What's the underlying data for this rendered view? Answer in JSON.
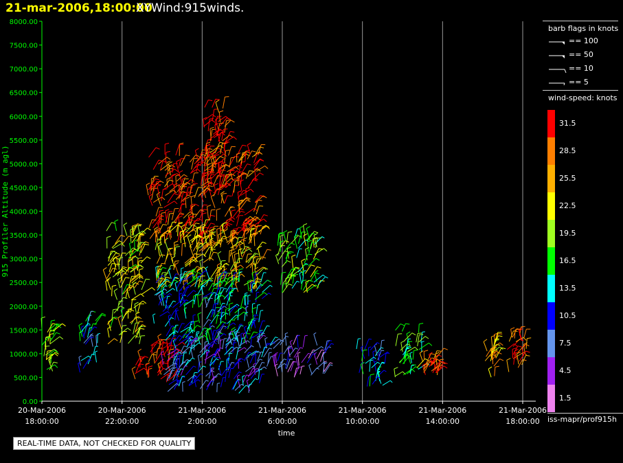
{
  "header": {
    "date_time": "21-mar-2006,18:00:00",
    "product": "XYWind:915winds."
  },
  "chart_data": {
    "type": "scatter",
    "subtype": "wind-barb time-height",
    "title": "",
    "xlabel": "time",
    "ylabel": "915 Profiler Altitude (m agl)",
    "ylim": [
      0,
      8000
    ],
    "yticks": [
      "0.00",
      "500.00",
      "1000.00",
      "1500.00",
      "2000.00",
      "2500.00",
      "3000.00",
      "3500.00",
      "4000.00",
      "4500.00",
      "5000.00",
      "5500.00",
      "6000.00",
      "6500.00",
      "7000.00",
      "7500.00",
      "8000.00"
    ],
    "ytick_values": [
      0,
      500,
      1000,
      1500,
      2000,
      2500,
      3000,
      3500,
      4000,
      4500,
      5000,
      5500,
      6000,
      6500,
      7000,
      7500,
      8000
    ],
    "xlim_hours_since_first_tick": [
      0,
      24.5
    ],
    "xticks": [
      {
        "hour": 0,
        "line1": "20-Mar-2006",
        "line2": "18:00:00"
      },
      {
        "hour": 4,
        "line1": "20-Mar-2006",
        "line2": "22:00:00"
      },
      {
        "hour": 8,
        "line1": "21-Mar-2006",
        "line2": "2:00:00"
      },
      {
        "hour": 12,
        "line1": "21-Mar-2006",
        "line2": "6:00:00"
      },
      {
        "hour": 16,
        "line1": "21-Mar-2006",
        "line2": "10:00:00"
      },
      {
        "hour": 20,
        "line1": "21-Mar-2006",
        "line2": "14:00:00"
      },
      {
        "hour": 24,
        "line1": "21-Mar-2006",
        "line2": "18:00:00"
      }
    ],
    "vertical_grid": true,
    "axis_color": "#00ff00",
    "clusters": [
      {
        "h0": 0.0,
        "h1": 0.6,
        "z0": 500,
        "z1": 1600,
        "speed": 20
      },
      {
        "h0": 1.9,
        "h1": 2.8,
        "z0": 600,
        "z1": 1700,
        "speed": 12
      },
      {
        "h0": 3.2,
        "h1": 5.0,
        "z0": 1200,
        "z1": 3600,
        "speed": 22
      },
      {
        "h0": 4.6,
        "h1": 6.6,
        "z0": 400,
        "z1": 1200,
        "speed": 31
      },
      {
        "h0": 5.3,
        "h1": 10.8,
        "z0": 3300,
        "z1": 5200,
        "speed": 30
      },
      {
        "h0": 8.0,
        "h1": 9.3,
        "z0": 4500,
        "z1": 6200,
        "speed": 31
      },
      {
        "h0": 5.6,
        "h1": 11.0,
        "z0": 2300,
        "z1": 3600,
        "speed": 24
      },
      {
        "h0": 5.6,
        "h1": 11.0,
        "z0": 1200,
        "z1": 2600,
        "speed": 13
      },
      {
        "h0": 6.0,
        "h1": 11.5,
        "z0": 150,
        "z1": 1300,
        "speed": 9
      },
      {
        "h0": 11.5,
        "h1": 14.2,
        "z0": 500,
        "z1": 1200,
        "speed": 6
      },
      {
        "h0": 11.7,
        "h1": 13.8,
        "z0": 2200,
        "z1": 3500,
        "speed": 18
      },
      {
        "h0": 15.7,
        "h1": 17.2,
        "z0": 300,
        "z1": 1100,
        "speed": 12
      },
      {
        "h0": 17.6,
        "h1": 19.0,
        "z0": 500,
        "z1": 1500,
        "speed": 17
      },
      {
        "h0": 19.0,
        "h1": 19.8,
        "z0": 500,
        "z1": 1000,
        "speed": 29
      },
      {
        "h0": 22.1,
        "h1": 22.7,
        "z0": 500,
        "z1": 1300,
        "speed": 25
      },
      {
        "h0": 23.2,
        "h1": 24.2,
        "z0": 600,
        "z1": 1400,
        "speed": 30
      }
    ]
  },
  "barb_legend": {
    "title": "barb flags in knots",
    "items": [
      {
        "label": "== 100",
        "value": 100
      },
      {
        "label": "== 50",
        "value": 50
      },
      {
        "label": "== 10",
        "value": 10
      },
      {
        "label": "== 5",
        "value": 5
      }
    ]
  },
  "speed_legend": {
    "title": "wind-speed: knots",
    "bins": [
      {
        "label": "31.5",
        "color": "#ff0000"
      },
      {
        "label": "28.5",
        "color": "#ff7f00"
      },
      {
        "label": "25.5",
        "color": "#ffb000"
      },
      {
        "label": "22.5",
        "color": "#ffff00"
      },
      {
        "label": "19.5",
        "color": "#a0ff20"
      },
      {
        "label": "16.5",
        "color": "#00ff00"
      },
      {
        "label": "13.5",
        "color": "#00ffff"
      },
      {
        "label": "10.5",
        "color": "#0000ff"
      },
      {
        "label": "7.5",
        "color": "#6495ed"
      },
      {
        "label": "4.5",
        "color": "#a020f0"
      },
      {
        "label": "1.5",
        "color": "#ee82ee"
      }
    ]
  },
  "footer": {
    "source": "iss-mapr/prof915h",
    "quality_note": "REAL-TIME DATA, NOT CHECKED FOR QUALITY"
  }
}
